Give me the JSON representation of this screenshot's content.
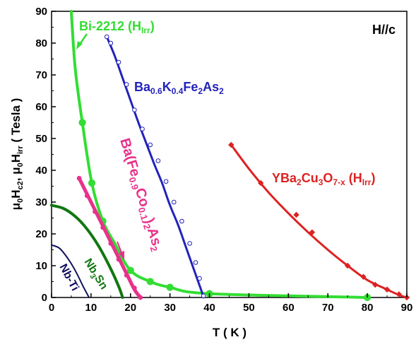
{
  "chart_data": {
    "type": "line",
    "xlabel": "T ( K )",
    "ylabel": "μ0Hc2, μ0Hirr ( Tesla )",
    "xlim": [
      0,
      90
    ],
    "ylim": [
      0,
      90
    ],
    "xticks": [
      0,
      10,
      20,
      30,
      40,
      50,
      60,
      70,
      80,
      90
    ],
    "yticks": [
      0,
      10,
      20,
      30,
      40,
      50,
      60,
      70,
      80,
      90
    ],
    "grid": false,
    "annotations": {
      "field_direction": "H//c"
    },
    "series": [
      {
        "name": "Bi-2212 (HIrr)",
        "color": "#33dd33",
        "marker": "circle",
        "x": [
          5,
          6,
          7.8,
          10.2,
          13,
          16,
          20,
          25,
          30,
          40,
          80
        ],
        "y": [
          90,
          72,
          55,
          36,
          24,
          17,
          8.5,
          5,
          3.2,
          1.2,
          0
        ],
        "points": [
          [
            7.8,
            55
          ],
          [
            10.2,
            36
          ],
          [
            13,
            24
          ],
          [
            20,
            8.5
          ],
          [
            25,
            5
          ],
          [
            30,
            3.2
          ],
          [
            40,
            1.2
          ],
          [
            80,
            0
          ]
        ]
      },
      {
        "name": "Ba0.6K0.4Fe2As2",
        "color": "#2222bb",
        "marker": "circle",
        "x": [
          14,
          16,
          18,
          20,
          22,
          24,
          26,
          28,
          30,
          32,
          34,
          36,
          38,
          38.5
        ],
        "y": [
          82,
          76,
          69,
          62,
          55,
          48.5,
          42,
          36,
          29,
          23,
          16,
          9,
          2,
          0
        ],
        "points": [
          [
            14,
            82
          ],
          [
            15,
            80
          ],
          [
            17,
            74
          ],
          [
            19,
            67
          ],
          [
            21,
            59
          ],
          [
            23,
            53
          ],
          [
            25,
            48
          ],
          [
            27,
            43
          ],
          [
            29,
            36.5
          ],
          [
            31,
            30
          ],
          [
            33,
            24
          ],
          [
            35,
            17
          ],
          [
            36.5,
            11
          ],
          [
            37.5,
            6
          ],
          [
            38.5,
            0.5
          ]
        ]
      },
      {
        "name": "Ba(Fe0.9Co0.1)2As2",
        "color": "#e8318a",
        "marker": "circle",
        "x": [
          7,
          10,
          13,
          16,
          19,
          21,
          22.5
        ],
        "y": [
          37.5,
          30,
          22.5,
          15,
          7.5,
          2.5,
          0
        ],
        "points": [
          [
            7,
            37.5
          ],
          [
            9,
            32
          ],
          [
            11,
            27
          ],
          [
            13,
            22
          ],
          [
            15,
            17
          ],
          [
            17,
            12
          ],
          [
            19,
            7
          ],
          [
            21,
            3
          ],
          [
            22.5,
            0
          ]
        ]
      },
      {
        "name": "YBa2Cu3O7-x (HIrr)",
        "color": "#dd2222",
        "marker": "diamond",
        "x": [
          45.5,
          50,
          55,
          60,
          65,
          70,
          75,
          80,
          85,
          88,
          90
        ],
        "y": [
          48,
          40.5,
          33,
          26.5,
          20.5,
          15,
          10,
          5.5,
          2.5,
          0.8,
          0
        ],
        "points": [
          [
            45.5,
            48
          ],
          [
            53,
            36
          ],
          [
            62,
            26
          ],
          [
            66,
            20.5
          ],
          [
            75,
            10
          ],
          [
            79,
            6.5
          ],
          [
            82,
            4
          ],
          [
            85,
            2.5
          ],
          [
            88,
            1
          ],
          [
            90,
            0
          ]
        ]
      },
      {
        "name": "Nb3Sn",
        "color": "#117711",
        "marker": "none",
        "x": [
          0,
          3,
          6,
          9,
          12,
          15,
          17,
          18
        ],
        "y": [
          29,
          28,
          25.5,
          21.5,
          16,
          9,
          3.5,
          0
        ],
        "points": []
      },
      {
        "name": "Nb-Ti",
        "color": "#11115e",
        "marker": "none",
        "x": [
          0,
          2,
          4,
          6,
          8,
          9.5
        ],
        "y": [
          16.5,
          15.5,
          12.5,
          8.5,
          3.5,
          0
        ],
        "points": []
      }
    ]
  }
}
